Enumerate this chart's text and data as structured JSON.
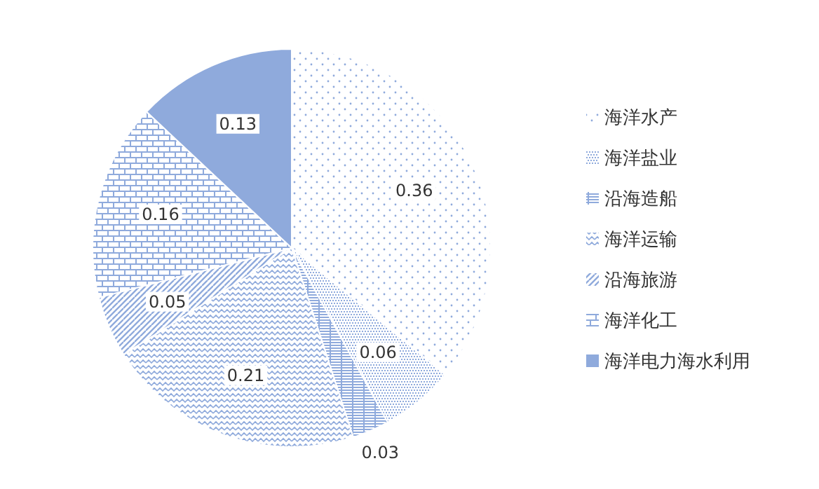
{
  "chart_data": {
    "type": "pie",
    "categories": [
      "海洋水产",
      "海洋盐业",
      "沿海造船",
      "海洋运输",
      "沿海旅游",
      "海洋化工",
      "海洋电力海水利用"
    ],
    "values": [
      0.36,
      0.06,
      0.03,
      0.21,
      0.05,
      0.16,
      0.13
    ],
    "colors": [
      "#ffffff",
      "#ffffff",
      "#ffffff",
      "#ffffff",
      "#ffffff",
      "#ffffff",
      "#8faadc"
    ],
    "data_labels": true,
    "legend": "right"
  }
}
